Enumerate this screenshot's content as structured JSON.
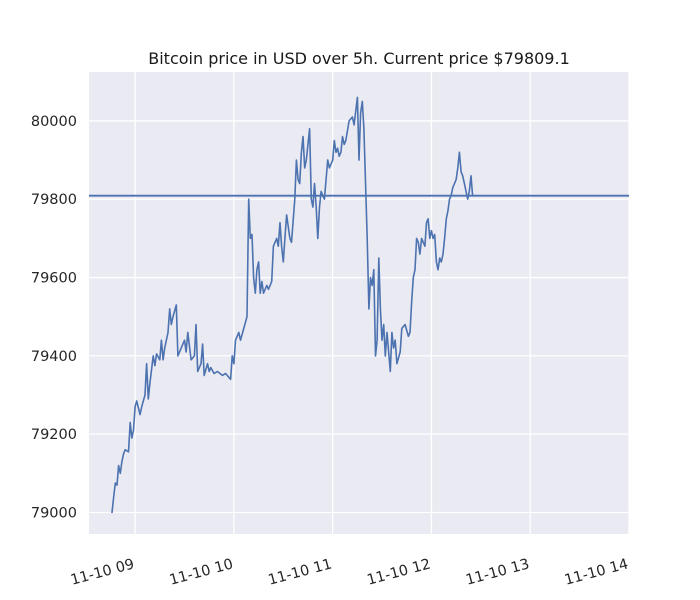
{
  "chart_data": {
    "type": "line",
    "title": "Bitcoin price in USD over 5h. Current price $79809.1",
    "xlabel": "",
    "ylabel": "",
    "x_ticks": [
      "11-10 09",
      "11-10 10",
      "11-10 11",
      "11-10 12",
      "11-10 13",
      "11-10 14"
    ],
    "y_ticks": [
      "79000",
      "79200",
      "79400",
      "79600",
      "79800",
      "80000"
    ],
    "xlim": [
      "11-10 08:32",
      "11-10 14:00"
    ],
    "ylim": [
      78945,
      80125
    ],
    "grid": true,
    "hline": {
      "y": 79809.1,
      "color": "#4c72b0"
    },
    "series": [
      {
        "color": "#4c72b0",
        "points": [
          [
            "11-10 08:46",
            79000
          ],
          [
            "11-10 08:47",
            79040
          ],
          [
            "11-10 08:48",
            79075
          ],
          [
            "11-10 08:49",
            79070
          ],
          [
            "11-10 08:50",
            79120
          ],
          [
            "11-10 08:51",
            79100
          ],
          [
            "11-10 08:52",
            79130
          ],
          [
            "11-10 08:53",
            79150
          ],
          [
            "11-10 08:54",
            79160
          ],
          [
            "11-10 08:56",
            79155
          ],
          [
            "11-10 08:57",
            79230
          ],
          [
            "11-10 08:58",
            79190
          ],
          [
            "11-10 08:59",
            79210
          ],
          [
            "11-10 09:00",
            79270
          ],
          [
            "11-10 09:01",
            79285
          ],
          [
            "11-10 09:03",
            79250
          ],
          [
            "11-10 09:04",
            79270
          ],
          [
            "11-10 09:06",
            79300
          ],
          [
            "11-10 09:07",
            79380
          ],
          [
            "11-10 09:08",
            79290
          ],
          [
            "11-10 09:09",
            79330
          ],
          [
            "11-10 09:11",
            79400
          ],
          [
            "11-10 09:12",
            79375
          ],
          [
            "11-10 09:13",
            79405
          ],
          [
            "11-10 09:15",
            79390
          ],
          [
            "11-10 09:16",
            79440
          ],
          [
            "11-10 09:17",
            79390
          ],
          [
            "11-10 09:18",
            79420
          ],
          [
            "11-10 09:20",
            79460
          ],
          [
            "11-10 09:21",
            79520
          ],
          [
            "11-10 09:22",
            79480
          ],
          [
            "11-10 09:23",
            79500
          ],
          [
            "11-10 09:25",
            79530
          ],
          [
            "11-10 09:26",
            79400
          ],
          [
            "11-10 09:28",
            79420
          ],
          [
            "11-10 09:30",
            79440
          ],
          [
            "11-10 09:31",
            79410
          ],
          [
            "11-10 09:32",
            79460
          ],
          [
            "11-10 09:34",
            79390
          ],
          [
            "11-10 09:36",
            79400
          ],
          [
            "11-10 09:37",
            79480
          ],
          [
            "11-10 09:38",
            79360
          ],
          [
            "11-10 09:40",
            79380
          ],
          [
            "11-10 09:41",
            79430
          ],
          [
            "11-10 09:42",
            79350
          ],
          [
            "11-10 09:44",
            79380
          ],
          [
            "11-10 09:45",
            79360
          ],
          [
            "11-10 09:46",
            79370
          ],
          [
            "11-10 09:48",
            79355
          ],
          [
            "11-10 09:50",
            79360
          ],
          [
            "11-10 09:53",
            79350
          ],
          [
            "11-10 09:55",
            79355
          ],
          [
            "11-10 09:58",
            79340
          ],
          [
            "11-10 09:59",
            79400
          ],
          [
            "11-10 10:00",
            79380
          ],
          [
            "11-10 10:01",
            79440
          ],
          [
            "11-10 10:03",
            79460
          ],
          [
            "11-10 10:04",
            79440
          ],
          [
            "11-10 10:06",
            79470
          ],
          [
            "11-10 10:08",
            79500
          ],
          [
            "11-10 10:09",
            79800
          ],
          [
            "11-10 10:10",
            79700
          ],
          [
            "11-10 10:11",
            79710
          ],
          [
            "11-10 10:12",
            79600
          ],
          [
            "11-10 10:13",
            79560
          ],
          [
            "11-10 10:14",
            79620
          ],
          [
            "11-10 10:15",
            79640
          ],
          [
            "11-10 10:16",
            79560
          ],
          [
            "11-10 10:17",
            79590
          ],
          [
            "11-10 10:18",
            79560
          ],
          [
            "11-10 10:20",
            79580
          ],
          [
            "11-10 10:21",
            79570
          ],
          [
            "11-10 10:23",
            79590
          ],
          [
            "11-10 10:24",
            79680
          ],
          [
            "11-10 10:26",
            79700
          ],
          [
            "11-10 10:27",
            79680
          ],
          [
            "11-10 10:28",
            79740
          ],
          [
            "11-10 10:29",
            79680
          ],
          [
            "11-10 10:30",
            79640
          ],
          [
            "11-10 10:31",
            79700
          ],
          [
            "11-10 10:32",
            79760
          ],
          [
            "11-10 10:34",
            79700
          ],
          [
            "11-10 10:35",
            79690
          ],
          [
            "11-10 10:37",
            79800
          ],
          [
            "11-10 10:38",
            79900
          ],
          [
            "11-10 10:39",
            79850
          ],
          [
            "11-10 10:40",
            79840
          ],
          [
            "11-10 10:41",
            79920
          ],
          [
            "11-10 10:42",
            79960
          ],
          [
            "11-10 10:43",
            79880
          ],
          [
            "11-10 10:44",
            79900
          ],
          [
            "11-10 10:46",
            79980
          ],
          [
            "11-10 10:47",
            79800
          ],
          [
            "11-10 10:48",
            79780
          ],
          [
            "11-10 10:49",
            79840
          ],
          [
            "11-10 10:50",
            79780
          ],
          [
            "11-10 10:51",
            79700
          ],
          [
            "11-10 10:52",
            79780
          ],
          [
            "11-10 10:53",
            79820
          ],
          [
            "11-10 10:55",
            79800
          ],
          [
            "11-10 10:57",
            79900
          ],
          [
            "11-10 10:58",
            79880
          ],
          [
            "11-10 11:00",
            79900
          ],
          [
            "11-10 11:01",
            79950
          ],
          [
            "11-10 11:02",
            79920
          ],
          [
            "11-10 11:03",
            79930
          ],
          [
            "11-10 11:04",
            79910
          ],
          [
            "11-10 11:05",
            79920
          ],
          [
            "11-10 11:06",
            79960
          ],
          [
            "11-10 11:07",
            79940
          ],
          [
            "11-10 11:08",
            79950
          ],
          [
            "11-10 11:10",
            80000
          ],
          [
            "11-10 11:12",
            80010
          ],
          [
            "11-10 11:13",
            79990
          ],
          [
            "11-10 11:15",
            80060
          ],
          [
            "11-10 11:16",
            79900
          ],
          [
            "11-10 11:17",
            80020
          ],
          [
            "11-10 11:18",
            80050
          ],
          [
            "11-10 11:19",
            79980
          ],
          [
            "11-10 11:21",
            79700
          ],
          [
            "11-10 11:22",
            79520
          ],
          [
            "11-10 11:23",
            79600
          ],
          [
            "11-10 11:24",
            79580
          ],
          [
            "11-10 11:25",
            79620
          ],
          [
            "11-10 11:26",
            79400
          ],
          [
            "11-10 11:27",
            79440
          ],
          [
            "11-10 11:28",
            79650
          ],
          [
            "11-10 11:29",
            79520
          ],
          [
            "11-10 11:30",
            79440
          ],
          [
            "11-10 11:31",
            79480
          ],
          [
            "11-10 11:32",
            79400
          ],
          [
            "11-10 11:33",
            79460
          ],
          [
            "11-10 11:35",
            79360
          ],
          [
            "11-10 11:36",
            79460
          ],
          [
            "11-10 11:37",
            79420
          ],
          [
            "11-10 11:38",
            79440
          ],
          [
            "11-10 11:39",
            79380
          ],
          [
            "11-10 11:41",
            79410
          ],
          [
            "11-10 11:42",
            79470
          ],
          [
            "11-10 11:44",
            79480
          ],
          [
            "11-10 11:46",
            79450
          ],
          [
            "11-10 11:47",
            79460
          ],
          [
            "11-10 11:48",
            79540
          ],
          [
            "11-10 11:49",
            79600
          ],
          [
            "11-10 11:50",
            79620
          ],
          [
            "11-10 11:51",
            79700
          ],
          [
            "11-10 11:52",
            79690
          ],
          [
            "11-10 11:53",
            79660
          ],
          [
            "11-10 11:54",
            79700
          ],
          [
            "11-10 11:56",
            79680
          ],
          [
            "11-10 11:57",
            79740
          ],
          [
            "11-10 11:58",
            79750
          ],
          [
            "11-10 11:59",
            79700
          ],
          [
            "11-10 12:00",
            79720
          ],
          [
            "11-10 12:01",
            79700
          ],
          [
            "11-10 12:02",
            79710
          ],
          [
            "11-10 12:03",
            79640
          ],
          [
            "11-10 12:04",
            79620
          ],
          [
            "11-10 12:05",
            79650
          ],
          [
            "11-10 12:06",
            79640
          ],
          [
            "11-10 12:07",
            79660
          ],
          [
            "11-10 12:08",
            79700
          ],
          [
            "11-10 12:09",
            79750
          ],
          [
            "11-10 12:10",
            79770
          ],
          [
            "11-10 12:11",
            79800
          ],
          [
            "11-10 12:12",
            79810
          ],
          [
            "11-10 12:13",
            79830
          ],
          [
            "11-10 12:14",
            79840
          ],
          [
            "11-10 12:15",
            79850
          ],
          [
            "11-10 12:16",
            79880
          ],
          [
            "11-10 12:17",
            79920
          ],
          [
            "11-10 12:18",
            79870
          ],
          [
            "11-10 12:19",
            79860
          ],
          [
            "11-10 12:20",
            79840
          ],
          [
            "11-10 12:21",
            79820
          ],
          [
            "11-10 12:22",
            79800
          ],
          [
            "11-10 12:23",
            79820
          ],
          [
            "11-10 12:24",
            79860
          ],
          [
            "11-10 12:25",
            79809.1
          ]
        ]
      }
    ]
  }
}
